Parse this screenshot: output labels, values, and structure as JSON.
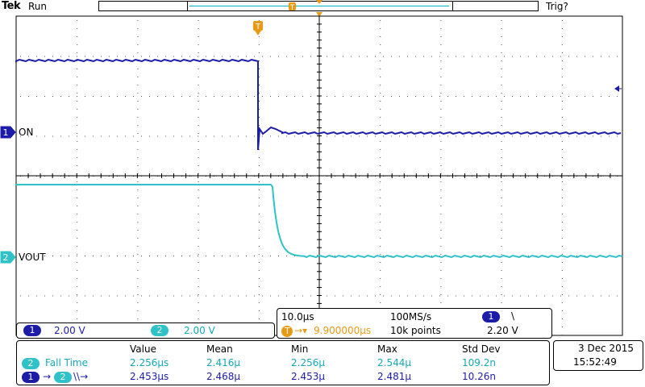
{
  "header": {
    "brand": "Tek",
    "status": "Run",
    "trigger_status": "Trig?",
    "trigger_marker": "T"
  },
  "channels": {
    "ch1": {
      "number": "1",
      "label": "ON",
      "scale": "2.00 V",
      "color": "#1c1ca8"
    },
    "ch2": {
      "number": "2",
      "label": "VOUT",
      "scale": "2.00 V",
      "color": "#2fc2c8"
    }
  },
  "timebase": {
    "time_per_div": "10.0µs",
    "sample_rate": "100MS/s",
    "trigger_channel": "1",
    "trigger_slope": "\\",
    "trigger_delay": "9.900000µs",
    "trigger_delay_prefix": "T",
    "record_length": "10k points",
    "trigger_level": "2.20 V"
  },
  "measurements": {
    "headers": [
      "Value",
      "Mean",
      "Min",
      "Max",
      "Std Dev"
    ],
    "rows": [
      {
        "source": "2",
        "name": "Fall Time",
        "value": "2.256µs",
        "mean": "2.416µ",
        "min": "2.256µ",
        "max": "2.544µ",
        "std_dev": "109.2n"
      },
      {
        "source": "1",
        "target": "2",
        "name_arrow_a": "→",
        "name_edges": "\\\\→",
        "value": "2.453µs",
        "mean": "2.468µ",
        "min": "2.453µ",
        "max": "2.481µ",
        "std_dev": "10.26n"
      }
    ]
  },
  "datetime": {
    "date": "3 Dec  2015",
    "time": "15:52:49"
  },
  "colors": {
    "ch1": "#1c1ca8",
    "ch2": "#2fc2c8",
    "trigger": "#e89a14",
    "grid": "#000000"
  }
}
